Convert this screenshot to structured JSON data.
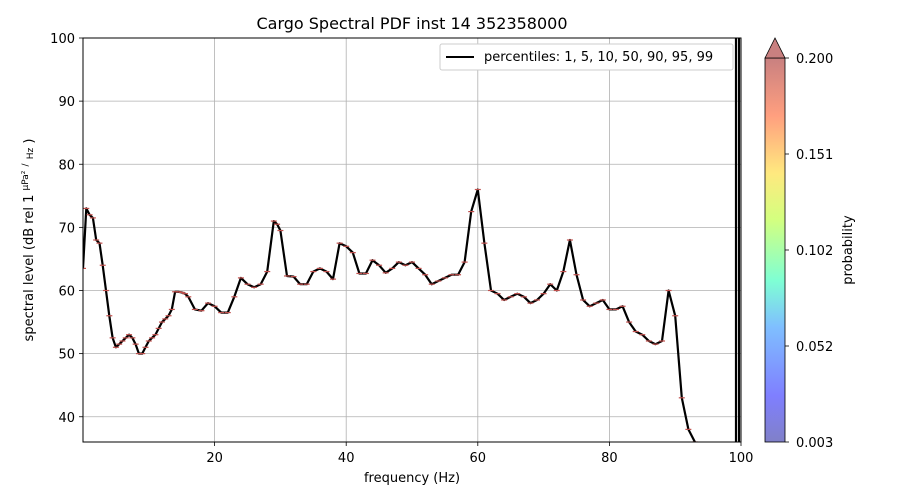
{
  "chart_data": {
    "type": "line",
    "title": "Cargo Spectral PDF inst 14 352358000",
    "xlabel": "frequency (Hz)",
    "ylabel": "spectral level (dB rel 1",
    "ylabel_frac_num": "μPa²",
    "ylabel_frac_den": "Hz",
    "ylabel_close": ")",
    "xlim": [
      0,
      100
    ],
    "ylim": [
      36,
      100
    ],
    "xticks": [
      20,
      40,
      60,
      80,
      100
    ],
    "yticks": [
      40,
      50,
      60,
      70,
      80,
      90,
      100
    ],
    "grid": true,
    "legend_position": "top-right",
    "series": [
      {
        "name": "percentiles: 1, 5, 10, 50, 90, 95, 99",
        "color": "#000000",
        "x": [
          0,
          0.5,
          1,
          1.5,
          2,
          2.5,
          3,
          3.5,
          4,
          4.5,
          5,
          5.5,
          6,
          6.5,
          7,
          7.5,
          8,
          8.5,
          9,
          9.5,
          10,
          10.5,
          11,
          11.5,
          12,
          12.5,
          13,
          13.5,
          14,
          14.5,
          15,
          15.5,
          16,
          17,
          18,
          19,
          20,
          21,
          22,
          23,
          24,
          25,
          26,
          27,
          28,
          29,
          29.5,
          30,
          31,
          32,
          33,
          34,
          35,
          36,
          37,
          38,
          39,
          40,
          41,
          42,
          43,
          44,
          45,
          46,
          47,
          48,
          49,
          50,
          51,
          52,
          53,
          54,
          55,
          56,
          57,
          58,
          59,
          60,
          61,
          62,
          63,
          64,
          65,
          66,
          67,
          68,
          69,
          70,
          71,
          72,
          73,
          74,
          75,
          76,
          77,
          78,
          79,
          80,
          81,
          82,
          83,
          84,
          85,
          86,
          87,
          88,
          89,
          90,
          91,
          92,
          93
        ],
        "y": [
          63.5,
          73,
          72,
          71.5,
          68,
          67.5,
          64,
          60,
          56,
          52.5,
          51,
          51.5,
          52,
          52.5,
          53,
          52.5,
          51.5,
          50,
          50,
          51,
          52,
          52.5,
          53,
          54,
          55,
          55.5,
          56,
          57,
          59.8,
          59.8,
          59.7,
          59.5,
          59,
          57,
          56.8,
          58,
          57.5,
          56.5,
          56.5,
          59,
          62,
          61,
          60.5,
          61,
          63,
          71,
          70.5,
          69.5,
          62.3,
          62.2,
          61,
          61,
          63,
          63.5,
          63,
          61.8,
          67.5,
          67,
          66,
          62.7,
          62.7,
          64.8,
          64,
          62.8,
          63.5,
          64.5,
          64,
          64.5,
          63.5,
          62.5,
          61,
          61.5,
          62,
          62.5,
          62.5,
          64.5,
          72.5,
          76,
          67.5,
          60,
          59.5,
          58.5,
          59,
          59.5,
          59,
          58,
          58.5,
          59.5,
          61,
          60,
          63,
          68,
          62.5,
          58.5,
          57.5,
          58,
          58.5,
          57,
          57,
          57.5,
          55,
          53.5,
          53,
          52,
          51.5,
          52,
          60,
          56,
          43,
          38,
          36
        ]
      }
    ],
    "colorbar": {
      "label": "probability",
      "ticks": [
        "0.200",
        "0.151",
        "0.102",
        "0.052",
        "0.003"
      ],
      "min": 0.003,
      "max": 0.2
    }
  }
}
